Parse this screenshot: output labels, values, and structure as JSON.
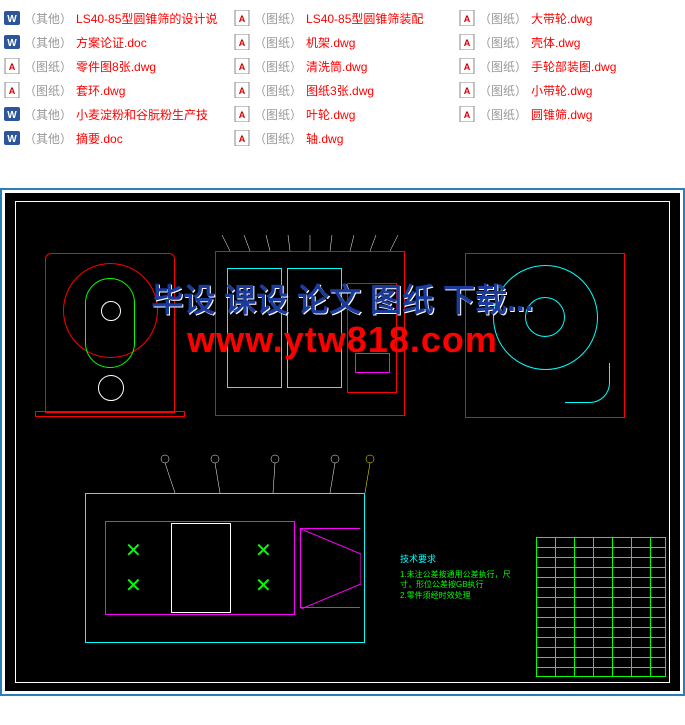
{
  "files": {
    "col1": [
      {
        "icon": "word",
        "tag": "（其他）",
        "name": "LS40-85型圆锥筛的设计说"
      },
      {
        "icon": "word",
        "tag": "（其他）",
        "name": "方案论证.doc"
      },
      {
        "icon": "dwg",
        "tag": "（图纸）",
        "name": "零件图8张.dwg"
      },
      {
        "icon": "dwg",
        "tag": "（图纸）",
        "name": "套环.dwg"
      },
      {
        "icon": "word",
        "tag": "（其他）",
        "name": "小麦淀粉和谷朊粉生产技"
      },
      {
        "icon": "word",
        "tag": "（其他）",
        "name": "摘要.doc"
      }
    ],
    "col2": [
      {
        "icon": "dwg",
        "tag": "（图纸）",
        "name": "LS40-85型圆锥筛装配"
      },
      {
        "icon": "dwg",
        "tag": "（图纸）",
        "name": "机架.dwg"
      },
      {
        "icon": "dwg",
        "tag": "（图纸）",
        "name": "清洗筒.dwg"
      },
      {
        "icon": "dwg",
        "tag": "（图纸）",
        "name": "图纸3张.dwg"
      },
      {
        "icon": "dwg",
        "tag": "（图纸）",
        "name": "叶轮.dwg"
      },
      {
        "icon": "dwg",
        "tag": "（图纸）",
        "name": "轴.dwg"
      }
    ],
    "col3": [
      {
        "icon": "dwg",
        "tag": "（图纸）",
        "name": "大带轮.dwg"
      },
      {
        "icon": "dwg",
        "tag": "（图纸）",
        "name": "壳体.dwg"
      },
      {
        "icon": "dwg",
        "tag": "（图纸）",
        "name": "手轮部装图.dwg"
      },
      {
        "icon": "dwg",
        "tag": "（图纸）",
        "name": "小带轮.dwg"
      },
      {
        "icon": "dwg",
        "tag": "（图纸）",
        "name": "圆锥筛.dwg"
      }
    ]
  },
  "watermark": {
    "line1": "毕设 课设 论文 图纸 下载...",
    "line2": "www.ytw818.com"
  },
  "notes": {
    "title": "技术要求",
    "l1": "1.未注公差按通用公差执行，尺寸，形位公差按GB执行",
    "l2": "2.零件须经时效处理"
  },
  "colors": {
    "frame_border": "#2a7fb8",
    "file_link": "#ff0000",
    "file_tag": "#999999",
    "cad_bg": "#000000",
    "cad_green": "#00ff00",
    "cad_red": "#ff0000",
    "cad_cyan": "#00ffff",
    "cad_magenta": "#ff00ff",
    "cad_white": "#ffffff",
    "wm_blue": "#1a3a9c",
    "wm_red": "#ff0000"
  }
}
